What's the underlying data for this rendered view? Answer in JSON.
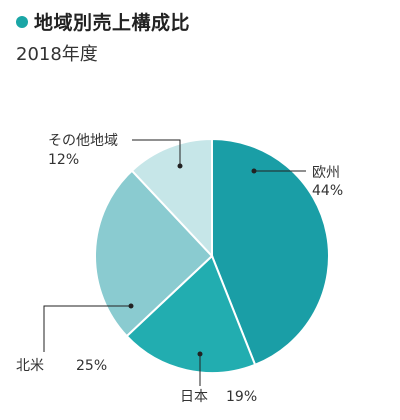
{
  "header": {
    "title": "地域別売上構成比",
    "subtitle": "2018年度"
  },
  "colors": {
    "accent": "#1aa6a6",
    "label_text": "#333333",
    "leader": "#222222"
  },
  "chart_data": {
    "type": "pie",
    "title": "地域別売上構成比",
    "subtitle": "2018年度",
    "start_angle_deg": 0,
    "direction": "clockwise",
    "slices": [
      {
        "name": "欧州",
        "value": 44,
        "value_label": "44%",
        "color": "#1a9ea6"
      },
      {
        "name": "日本",
        "value": 19,
        "value_label": "19%",
        "color": "#22adb0"
      },
      {
        "name": "北米",
        "value": 25,
        "value_label": "25%",
        "color": "#8acbd0"
      },
      {
        "name": "その他地域",
        "value": 12,
        "value_label": "12%",
        "color": "#c6e6e8"
      }
    ]
  }
}
